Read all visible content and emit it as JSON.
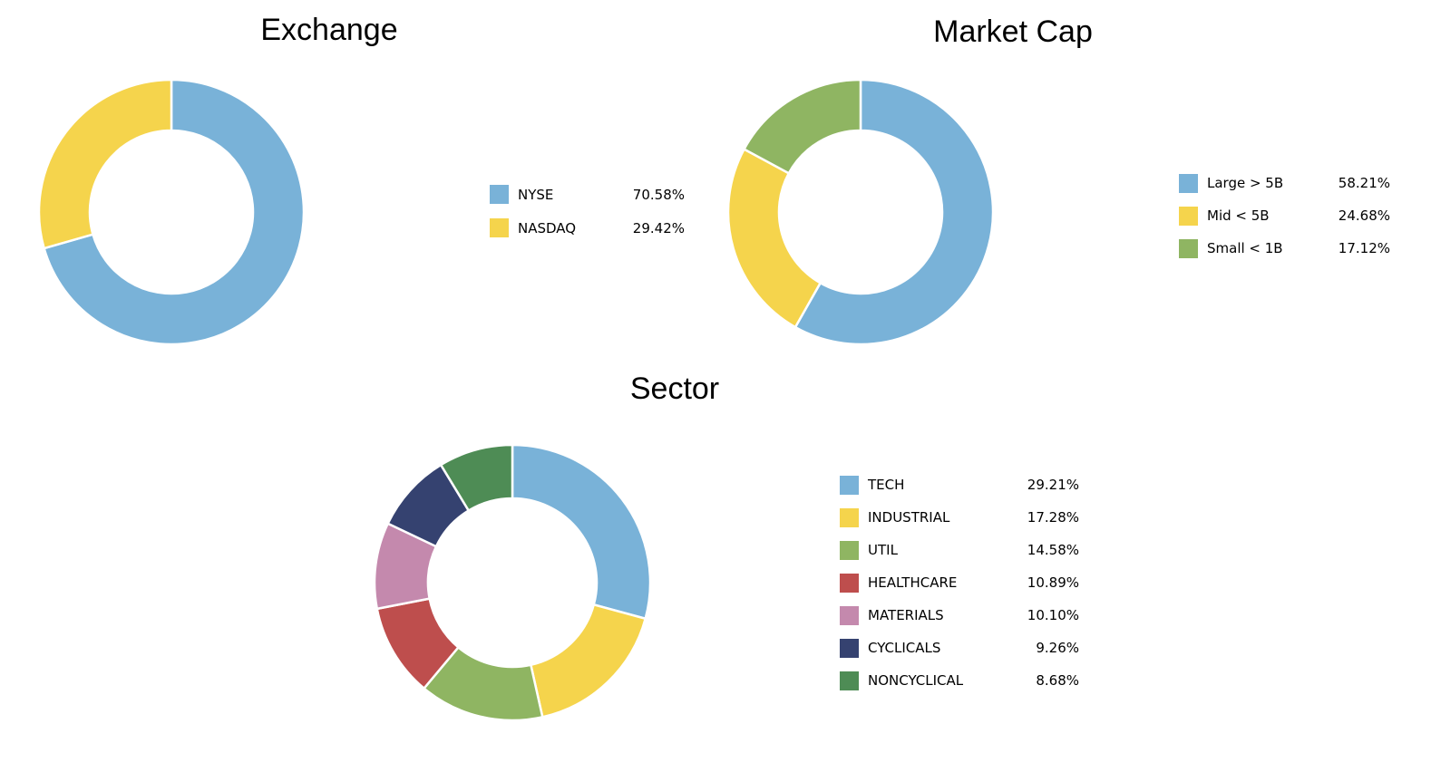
{
  "background": "#ffffff",
  "chart_data": [
    {
      "type": "pie",
      "subtype": "donut",
      "title": "Exchange",
      "labels": [
        "NYSE",
        "NASDAQ"
      ],
      "values": [
        70.58,
        29.42
      ],
      "values_display": [
        "70.58%",
        "29.42%"
      ],
      "colors": [
        "#79B2D8",
        "#F5D44C"
      ],
      "legend_position": "right",
      "start_angle_deg": 0,
      "direction": "clockwise"
    },
    {
      "type": "pie",
      "subtype": "donut",
      "title": "Market Cap",
      "labels": [
        "Large > 5B",
        "Mid < 5B",
        "Small < 1B"
      ],
      "values": [
        58.21,
        24.68,
        17.12
      ],
      "values_display": [
        "58.21%",
        "24.68%",
        "17.12%"
      ],
      "colors": [
        "#79B2D8",
        "#F5D44C",
        "#8FB562"
      ],
      "legend_position": "right",
      "start_angle_deg": 0,
      "direction": "clockwise"
    },
    {
      "type": "pie",
      "subtype": "donut",
      "title": "Sector",
      "labels": [
        "TECH",
        "INDUSTRIAL",
        "UTIL",
        "HEALTHCARE",
        "MATERIALS",
        "CYCLICALS",
        "NONCYCLICAL"
      ],
      "values": [
        29.21,
        17.28,
        14.58,
        10.89,
        10.1,
        9.26,
        8.68
      ],
      "values_display": [
        "29.21%",
        "17.28%",
        "14.58%",
        "10.89%",
        "10.10%",
        "9.26%",
        "8.68%"
      ],
      "colors": [
        "#79B2D8",
        "#F5D44C",
        "#8FB562",
        "#BE4E4D",
        "#C489AD",
        "#354270",
        "#4E8C55"
      ],
      "legend_position": "right",
      "start_angle_deg": 0,
      "direction": "clockwise"
    }
  ]
}
